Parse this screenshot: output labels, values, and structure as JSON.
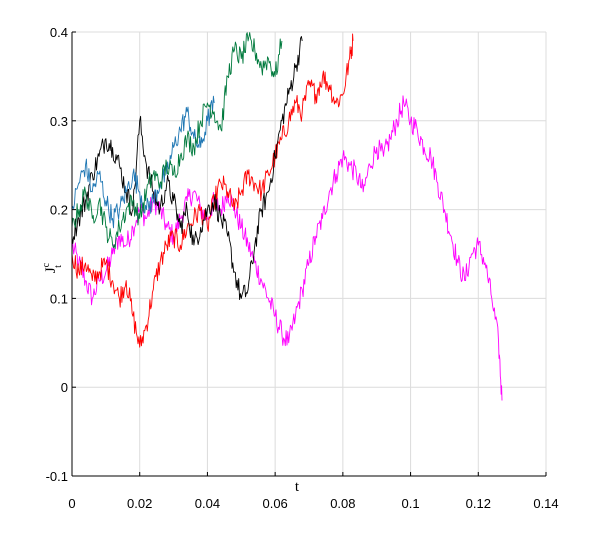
{
  "chart_data": {
    "type": "line",
    "title": "",
    "xlabel": "t",
    "ylabel": "J",
    "ylabel_superscript": "c",
    "ylabel_subscript": "t",
    "xlim": [
      0,
      0.14
    ],
    "ylim": [
      -0.1,
      0.4
    ],
    "xticks": [
      0,
      0.02,
      0.04,
      0.06,
      0.08,
      0.1,
      0.12,
      0.14
    ],
    "xtick_labels": [
      "0",
      "0.02",
      "0.04",
      "0.06",
      "0.08",
      "0.1",
      "0.12",
      "0.14"
    ],
    "yticks": [
      -0.1,
      0,
      0.1,
      0.2,
      0.3,
      0.4
    ],
    "ytick_labels": [
      "-0.1",
      "0",
      "0.1",
      "0.2",
      "0.3",
      "0.4"
    ],
    "grid": true,
    "legend": "none",
    "series": [
      {
        "color": "#ff00ff",
        "x": [
          0,
          0.002,
          0.004,
          0.006,
          0.008,
          0.01,
          0.012,
          0.014,
          0.016,
          0.018,
          0.02,
          0.022,
          0.024,
          0.026,
          0.028,
          0.03,
          0.032,
          0.034,
          0.036,
          0.038,
          0.04,
          0.042,
          0.044,
          0.046,
          0.048,
          0.05,
          0.052,
          0.054,
          0.056,
          0.058,
          0.06,
          0.062,
          0.064,
          0.066,
          0.068,
          0.07,
          0.072,
          0.074,
          0.076,
          0.078,
          0.08,
          0.082,
          0.084,
          0.086,
          0.088,
          0.09,
          0.092,
          0.094,
          0.096,
          0.098,
          0.1,
          0.102,
          0.104,
          0.106,
          0.108,
          0.11,
          0.112,
          0.114,
          0.116,
          0.118,
          0.12,
          0.122,
          0.124,
          0.126,
          0.127
        ],
        "y": [
          0.16,
          0.14,
          0.12,
          0.1,
          0.12,
          0.13,
          0.15,
          0.17,
          0.16,
          0.18,
          0.2,
          0.19,
          0.21,
          0.2,
          0.18,
          0.17,
          0.19,
          0.21,
          0.22,
          0.2,
          0.19,
          0.21,
          0.2,
          0.22,
          0.2,
          0.18,
          0.16,
          0.14,
          0.12,
          0.1,
          0.08,
          0.06,
          0.05,
          0.08,
          0.11,
          0.14,
          0.17,
          0.19,
          0.22,
          0.24,
          0.26,
          0.25,
          0.24,
          0.22,
          0.25,
          0.27,
          0.26,
          0.28,
          0.3,
          0.32,
          0.3,
          0.29,
          0.27,
          0.26,
          0.23,
          0.2,
          0.17,
          0.14,
          0.12,
          0.15,
          0.16,
          0.14,
          0.1,
          0.05,
          -0.015
        ]
      },
      {
        "color": "#ff0000",
        "x": [
          0,
          0.002,
          0.004,
          0.006,
          0.008,
          0.01,
          0.012,
          0.014,
          0.016,
          0.018,
          0.02,
          0.022,
          0.024,
          0.026,
          0.028,
          0.03,
          0.032,
          0.034,
          0.036,
          0.038,
          0.04,
          0.042,
          0.044,
          0.046,
          0.048,
          0.05,
          0.052,
          0.054,
          0.056,
          0.058,
          0.06,
          0.062,
          0.064,
          0.066,
          0.068,
          0.07,
          0.072,
          0.074,
          0.076,
          0.078,
          0.08,
          0.082,
          0.083
        ],
        "y": [
          0.15,
          0.13,
          0.14,
          0.12,
          0.13,
          0.14,
          0.12,
          0.1,
          0.12,
          0.08,
          0.045,
          0.07,
          0.11,
          0.14,
          0.16,
          0.17,
          0.16,
          0.18,
          0.19,
          0.2,
          0.18,
          0.21,
          0.23,
          0.22,
          0.2,
          0.22,
          0.24,
          0.23,
          0.22,
          0.24,
          0.26,
          0.28,
          0.3,
          0.32,
          0.31,
          0.34,
          0.33,
          0.35,
          0.34,
          0.32,
          0.33,
          0.37,
          0.39
        ]
      },
      {
        "color": "#000000",
        "x": [
          0,
          0.002,
          0.004,
          0.006,
          0.008,
          0.01,
          0.012,
          0.014,
          0.016,
          0.018,
          0.02,
          0.022,
          0.024,
          0.026,
          0.028,
          0.03,
          0.032,
          0.034,
          0.036,
          0.038,
          0.04,
          0.042,
          0.044,
          0.046,
          0.048,
          0.05,
          0.052,
          0.054,
          0.056,
          0.058,
          0.06,
          0.062,
          0.064,
          0.066,
          0.068
        ],
        "y": [
          0.17,
          0.19,
          0.21,
          0.24,
          0.26,
          0.28,
          0.27,
          0.25,
          0.22,
          0.2,
          0.3,
          0.25,
          0.22,
          0.2,
          0.23,
          0.21,
          0.18,
          0.2,
          0.16,
          0.18,
          0.2,
          0.21,
          0.19,
          0.17,
          0.13,
          0.1,
          0.11,
          0.16,
          0.2,
          0.22,
          0.26,
          0.3,
          0.33,
          0.36,
          0.39
        ]
      },
      {
        "color": "#1f77b4",
        "x": [
          0,
          0.002,
          0.004,
          0.006,
          0.008,
          0.01,
          0.012,
          0.014,
          0.016,
          0.018,
          0.02,
          0.022,
          0.024,
          0.026,
          0.028,
          0.03,
          0.032,
          0.034,
          0.036,
          0.038,
          0.04,
          0.042
        ],
        "y": [
          0.2,
          0.23,
          0.25,
          0.22,
          0.24,
          0.21,
          0.19,
          0.2,
          0.22,
          0.24,
          0.22,
          0.2,
          0.21,
          0.23,
          0.24,
          0.27,
          0.29,
          0.31,
          0.28,
          0.27,
          0.3,
          0.32
        ]
      },
      {
        "color": "#007a3d",
        "x": [
          0,
          0.002,
          0.004,
          0.006,
          0.008,
          0.01,
          0.012,
          0.014,
          0.016,
          0.018,
          0.02,
          0.022,
          0.024,
          0.026,
          0.028,
          0.03,
          0.032,
          0.034,
          0.036,
          0.038,
          0.04,
          0.042,
          0.044,
          0.046,
          0.048,
          0.05,
          0.052,
          0.054,
          0.056,
          0.058,
          0.06,
          0.062
        ],
        "y": [
          0.18,
          0.2,
          0.22,
          0.19,
          0.21,
          0.18,
          0.16,
          0.18,
          0.2,
          0.21,
          0.19,
          0.22,
          0.24,
          0.23,
          0.25,
          0.24,
          0.26,
          0.28,
          0.27,
          0.3,
          0.32,
          0.31,
          0.29,
          0.35,
          0.38,
          0.37,
          0.39,
          0.38,
          0.36,
          0.37,
          0.35,
          0.39
        ]
      }
    ]
  }
}
